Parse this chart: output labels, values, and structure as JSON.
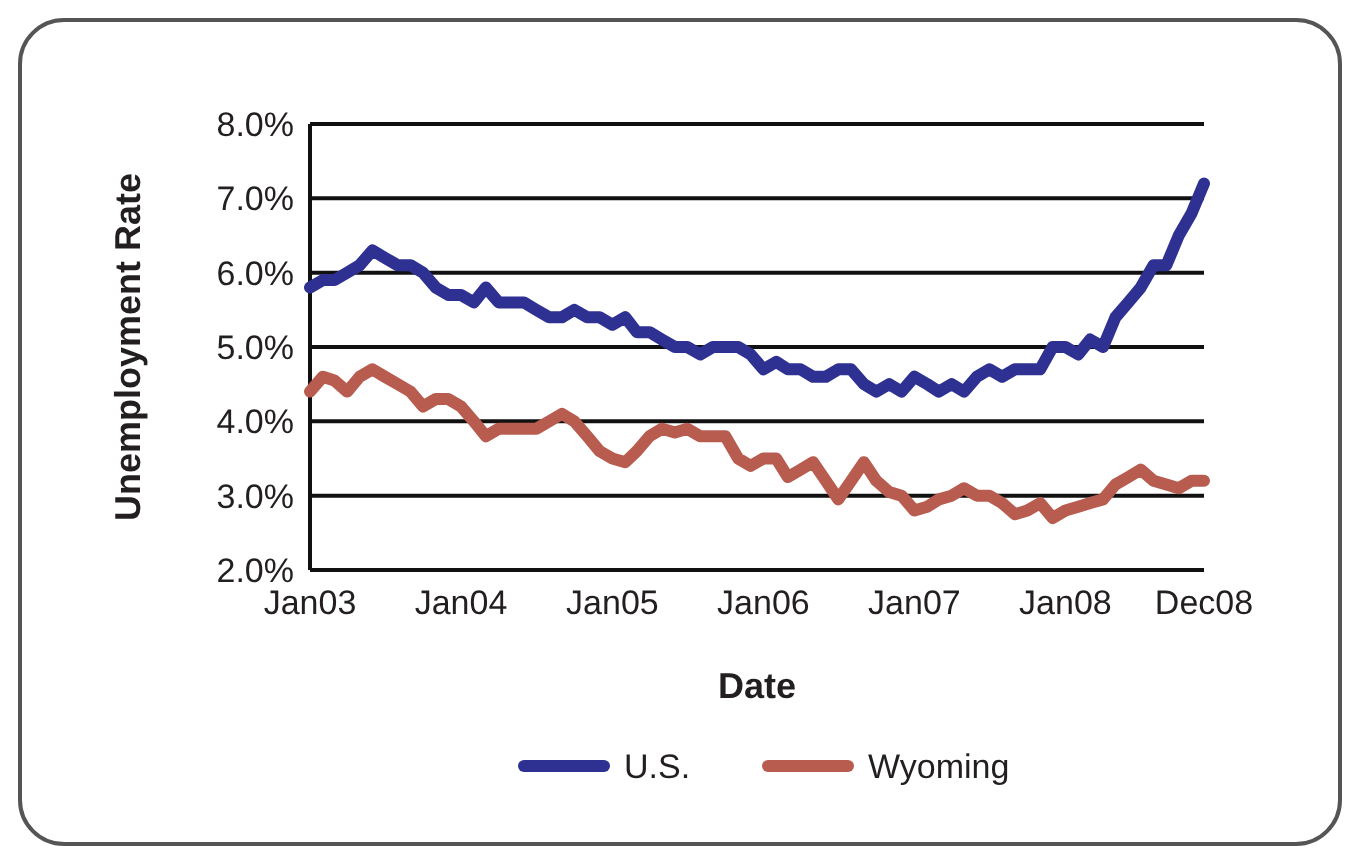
{
  "chart_data": {
    "type": "line",
    "xlabel": "Date",
    "ylabel": "Unemployment Rate",
    "x": [
      "2003-01",
      "2003-02",
      "2003-03",
      "2003-04",
      "2003-05",
      "2003-06",
      "2003-07",
      "2003-08",
      "2003-09",
      "2003-10",
      "2003-11",
      "2003-12",
      "2004-01",
      "2004-02",
      "2004-03",
      "2004-04",
      "2004-05",
      "2004-06",
      "2004-07",
      "2004-08",
      "2004-09",
      "2004-10",
      "2004-11",
      "2004-12",
      "2005-01",
      "2005-02",
      "2005-03",
      "2005-04",
      "2005-05",
      "2005-06",
      "2005-07",
      "2005-08",
      "2005-09",
      "2005-10",
      "2005-11",
      "2005-12",
      "2006-01",
      "2006-02",
      "2006-03",
      "2006-04",
      "2006-05",
      "2006-06",
      "2006-07",
      "2006-08",
      "2006-09",
      "2006-10",
      "2006-11",
      "2006-12",
      "2007-01",
      "2007-02",
      "2007-03",
      "2007-04",
      "2007-05",
      "2007-06",
      "2007-07",
      "2007-08",
      "2007-09",
      "2007-10",
      "2007-11",
      "2007-12",
      "2008-01",
      "2008-02",
      "2008-03",
      "2008-04",
      "2008-05",
      "2008-06",
      "2008-07",
      "2008-08",
      "2008-09",
      "2008-10",
      "2008-11",
      "2008-12"
    ],
    "series": [
      {
        "name": "U.S.",
        "color": "#2e3192",
        "values": [
          5.8,
          5.9,
          5.9,
          6.0,
          6.1,
          6.3,
          6.2,
          6.1,
          6.1,
          6.0,
          5.8,
          5.7,
          5.7,
          5.6,
          5.8,
          5.6,
          5.6,
          5.6,
          5.5,
          5.4,
          5.4,
          5.5,
          5.4,
          5.4,
          5.3,
          5.4,
          5.2,
          5.2,
          5.1,
          5.0,
          5.0,
          4.9,
          5.0,
          5.0,
          5.0,
          4.9,
          4.7,
          4.8,
          4.7,
          4.7,
          4.6,
          4.6,
          4.7,
          4.7,
          4.5,
          4.4,
          4.5,
          4.4,
          4.6,
          4.5,
          4.4,
          4.5,
          4.4,
          4.6,
          4.7,
          4.6,
          4.7,
          4.7,
          4.7,
          5.0,
          5.0,
          4.9,
          5.1,
          5.0,
          5.4,
          5.6,
          5.8,
          6.1,
          6.1,
          6.5,
          6.8,
          7.2
        ]
      },
      {
        "name": "Wyoming",
        "color": "#b85c50",
        "values": [
          4.4,
          4.6,
          4.55,
          4.4,
          4.6,
          4.7,
          4.6,
          4.5,
          4.4,
          4.2,
          4.3,
          4.3,
          4.2,
          4.0,
          3.8,
          3.9,
          3.9,
          3.9,
          3.9,
          4.0,
          4.1,
          4.0,
          3.8,
          3.6,
          3.5,
          3.45,
          3.6,
          3.8,
          3.9,
          3.85,
          3.9,
          3.8,
          3.8,
          3.8,
          3.5,
          3.4,
          3.5,
          3.5,
          3.25,
          3.35,
          3.45,
          3.2,
          2.95,
          3.2,
          3.45,
          3.2,
          3.05,
          3.0,
          2.8,
          2.85,
          2.95,
          3.0,
          3.1,
          3.0,
          3.0,
          2.9,
          2.75,
          2.8,
          2.9,
          2.7,
          2.8,
          2.85,
          2.9,
          2.95,
          3.15,
          3.25,
          3.35,
          3.2,
          3.15,
          3.1,
          3.2,
          3.2
        ]
      }
    ],
    "xlim": [
      "2003-01",
      "2008-12"
    ],
    "xticks": [
      {
        "value": "2003-01",
        "label": "Jan03"
      },
      {
        "value": "2004-01",
        "label": "Jan04"
      },
      {
        "value": "2005-01",
        "label": "Jan05"
      },
      {
        "value": "2006-01",
        "label": "Jan06"
      },
      {
        "value": "2007-01",
        "label": "Jan07"
      },
      {
        "value": "2008-01",
        "label": "Jan08"
      },
      {
        "value": "2008-12",
        "label": "Dec08"
      }
    ],
    "ylim": [
      2,
      8
    ],
    "yticks": [
      {
        "value": 2,
        "label": "2.0%"
      },
      {
        "value": 3,
        "label": "3.0%"
      },
      {
        "value": 4,
        "label": "4.0%"
      },
      {
        "value": 5,
        "label": "5.0%"
      },
      {
        "value": 6,
        "label": "6.0%"
      },
      {
        "value": 7,
        "label": "7.0%"
      },
      {
        "value": 8,
        "label": "8.0%"
      }
    ],
    "grid": "y",
    "legend": "bottom",
    "marker": "none",
    "line_style": "solid"
  }
}
